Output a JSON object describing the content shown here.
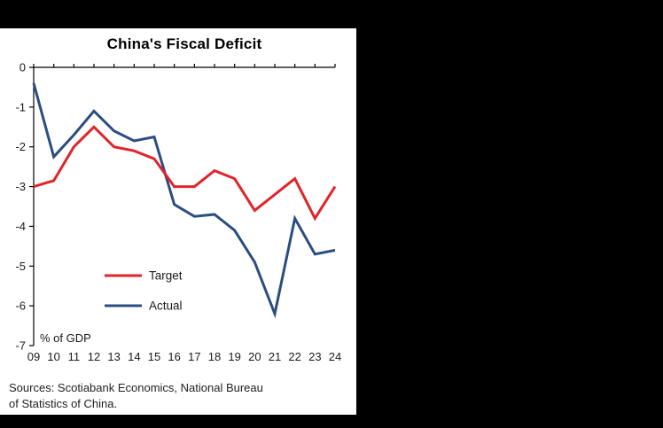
{
  "chart_data": {
    "type": "line",
    "title": "China's Fiscal Deficit",
    "x_categories": [
      "09",
      "10",
      "11",
      "12",
      "13",
      "14",
      "15",
      "16",
      "17",
      "18",
      "19",
      "20",
      "21",
      "22",
      "23",
      "24"
    ],
    "series": [
      {
        "name": "Target",
        "color": "#e0242b",
        "values": [
          -3.0,
          -2.85,
          -2.0,
          -1.5,
          -2.0,
          -2.1,
          -2.3,
          -3.0,
          -3.0,
          -2.6,
          -2.8,
          -3.6,
          -3.2,
          -2.8,
          -3.8,
          -3.0
        ]
      },
      {
        "name": "Actual",
        "color": "#2b4d7f",
        "values": [
          -0.4,
          -2.25,
          -1.7,
          -1.1,
          -1.6,
          -1.85,
          -1.75,
          -3.45,
          -3.75,
          -3.7,
          -4.1,
          -4.9,
          -6.2,
          -3.8,
          -4.7,
          -4.6
        ]
      }
    ],
    "ylim": [
      -7,
      0
    ],
    "y_ticks": [
      0,
      -1,
      -2,
      -3,
      -4,
      -5,
      -6,
      -7
    ],
    "y_unit_label": "% of GDP",
    "legend_position": "inside-left",
    "grid": false,
    "axis_color": "#000000"
  },
  "source_note": {
    "line1": "Sources: Scotiabank Economics, National Bureau",
    "line2": "of Statistics of China."
  }
}
